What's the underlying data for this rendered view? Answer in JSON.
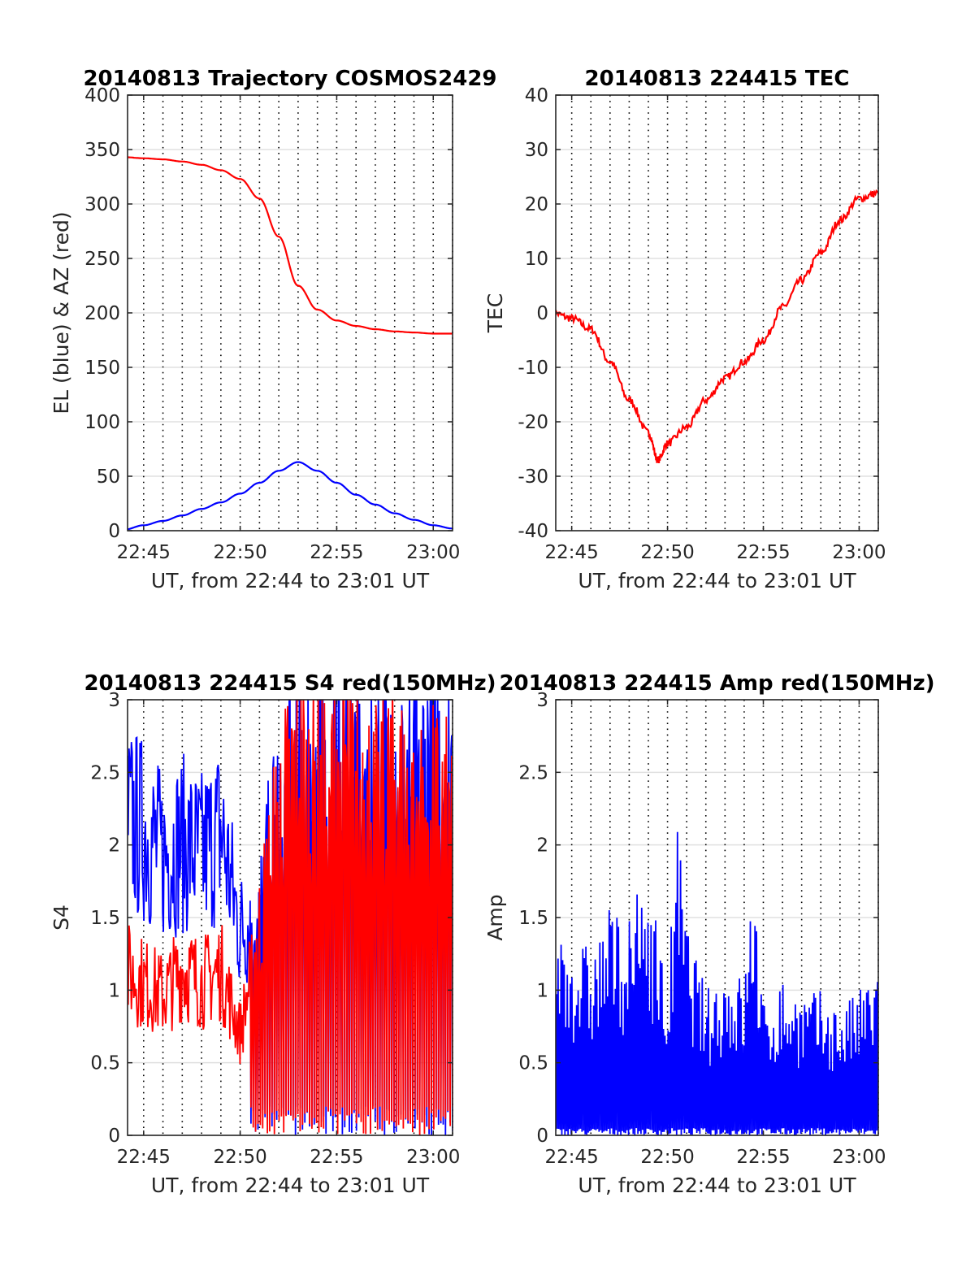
{
  "chart_data": [
    {
      "type": "line",
      "title": "20140813 Trajectory COSMOS2429",
      "xlabel": "UT, from 22:44 to 23:01 UT",
      "ylabel": "EL (blue) & AZ (red)",
      "xlim": [
        "22:44:10",
        "23:01:00"
      ],
      "ylim": [
        0,
        400
      ],
      "xticks": [
        "22:45",
        "22:50",
        "22:55",
        "23:00"
      ],
      "yticks": [
        "0",
        "50",
        "100",
        "150",
        "200",
        "250",
        "300",
        "350",
        "400"
      ],
      "grid": true,
      "x": [
        "22:44",
        "22:45",
        "22:46",
        "22:47",
        "22:48",
        "22:49",
        "22:50",
        "22:51",
        "22:52",
        "22:53",
        "22:54",
        "22:55",
        "22:56",
        "22:57",
        "22:58",
        "22:59",
        "23:00",
        "23:01"
      ],
      "series": [
        {
          "color": "#0000ff",
          "values": [
            1,
            5,
            9,
            14,
            20,
            26,
            34,
            44,
            55,
            63,
            55,
            44,
            33,
            24,
            16,
            10,
            5,
            2
          ]
        },
        {
          "color": "#ff0000",
          "values": [
            343,
            342,
            341,
            339,
            336,
            331,
            323,
            305,
            270,
            225,
            203,
            193,
            188,
            185,
            183,
            182,
            181,
            181
          ]
        }
      ]
    },
    {
      "type": "line",
      "title": "20140813 224415 TEC",
      "xlabel": "UT, from 22:44 to 23:01 UT",
      "ylabel": "TEC",
      "xlim": [
        "22:44:10",
        "23:01:00"
      ],
      "ylim": [
        -40,
        40
      ],
      "xticks": [
        "22:45",
        "22:50",
        "22:55",
        "23:00"
      ],
      "yticks": [
        "-40",
        "-30",
        "-20",
        "-10",
        "0",
        "10",
        "20",
        "30",
        "40"
      ],
      "grid": true,
      "x": [
        "22:44",
        "22:45",
        "22:46",
        "22:47",
        "22:48",
        "22:49",
        "22:49:30",
        "22:50",
        "22:51",
        "22:52",
        "22:53",
        "22:54",
        "22:55",
        "22:56",
        "22:57",
        "22:58",
        "22:59",
        "23:00",
        "23:01"
      ],
      "series": [
        {
          "color": "#ff0000",
          "values": [
            0,
            -1,
            -3,
            -9,
            -16,
            -22,
            -27,
            -24,
            -21,
            -16,
            -12,
            -9,
            -5,
            1,
            6,
            11,
            17,
            21,
            22
          ]
        }
      ]
    },
    {
      "type": "line",
      "title": "20140813 224415 S4 red(150MHz)",
      "xlabel": "UT, from 22:44 to 23:01 UT",
      "ylabel": "S4",
      "xlim": [
        "22:44:10",
        "23:01:00"
      ],
      "ylim": [
        0,
        3
      ],
      "xticks": [
        "22:45",
        "22:50",
        "22:55",
        "23:00"
      ],
      "yticks": [
        "0",
        "0.5",
        "1",
        "1.5",
        "2",
        "2.5",
        "3"
      ],
      "grid": true,
      "x": [
        "22:44",
        "22:45",
        "22:46",
        "22:47",
        "22:48",
        "22:49",
        "22:50",
        "22:51",
        "22:52",
        "22:53",
        "22:54",
        "22:55",
        "22:56",
        "22:57",
        "22:58",
        "22:59",
        "23:00",
        "23:01"
      ],
      "series": [
        {
          "color": "#0000ff",
          "values": [
            2.5,
            2.4,
            2.2,
            2.3,
            2.2,
            2.4,
            1.6,
            1.8,
            2.6,
            3.0,
            2.8,
            3.0,
            3.0,
            2.9,
            3.0,
            2.8,
            3.0,
            2.9
          ]
        },
        {
          "color": "#ff0000",
          "values": [
            1.3,
            1.2,
            1.1,
            1.3,
            1.2,
            1.3,
            0.8,
            1.6,
            2.5,
            2.9,
            2.7,
            3.0,
            2.8,
            2.6,
            2.8,
            2.5,
            2.6,
            2.5
          ]
        }
      ]
    },
    {
      "type": "line",
      "title": "20140813 224415 Amp red(150MHz)",
      "xlabel": "UT, from 22:44 to 23:01 UT",
      "ylabel": "Amp",
      "xlim": [
        "22:44:10",
        "23:01:00"
      ],
      "ylim": [
        0,
        3
      ],
      "xticks": [
        "22:45",
        "22:50",
        "22:55",
        "23:00"
      ],
      "yticks": [
        "0",
        "0.5",
        "1",
        "1.5",
        "2",
        "2.5",
        "3"
      ],
      "grid": true,
      "x": [
        "22:44",
        "22:45",
        "22:46",
        "22:47",
        "22:48",
        "22:49",
        "22:50",
        "22:50:30",
        "22:51",
        "22:52",
        "22:53",
        "22:54",
        "22:54:30",
        "22:55",
        "22:56",
        "22:57",
        "22:58",
        "22:59",
        "23:00",
        "23:01"
      ],
      "series": [
        {
          "color": "#0000ff",
          "values": [
            1.5,
            1.4,
            1.3,
            1.6,
            1.5,
            1.9,
            1.0,
            2.2,
            1.5,
            1.0,
            1.2,
            1.1,
            1.9,
            0.9,
            1.1,
            1.0,
            1.0,
            0.9,
            1.0,
            1.2
          ]
        }
      ]
    }
  ]
}
